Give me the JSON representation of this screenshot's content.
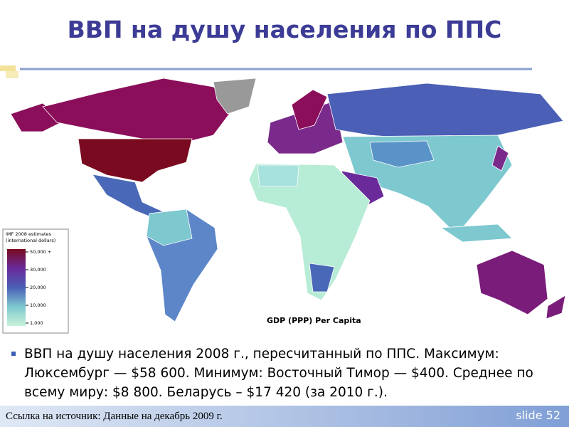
{
  "header": {
    "title": "ВВП на душу населения по ППС"
  },
  "map": {
    "legend": {
      "title_lines": [
        "IMF 2008 estimates",
        "(international dollars)"
      ],
      "labels": [
        "50,000 +",
        "30,000",
        "20,000",
        "10,000",
        "1,000"
      ]
    },
    "caption": "GDP (PPP) Per Capita"
  },
  "bullets": [
    "ВВП на душу населения 2008 г., пересчитанный по ППС. Максимум: Люксембург — $58 600. Минимум: Восточный Тимор — $400. Среднее по всему миру: $8 800. Беларусь – $17 420 (за 2010 г.)."
  ],
  "footer": {
    "source": "Ссылка на источник: Данные на декабрь 2009 г.",
    "slide": "slide 52"
  }
}
